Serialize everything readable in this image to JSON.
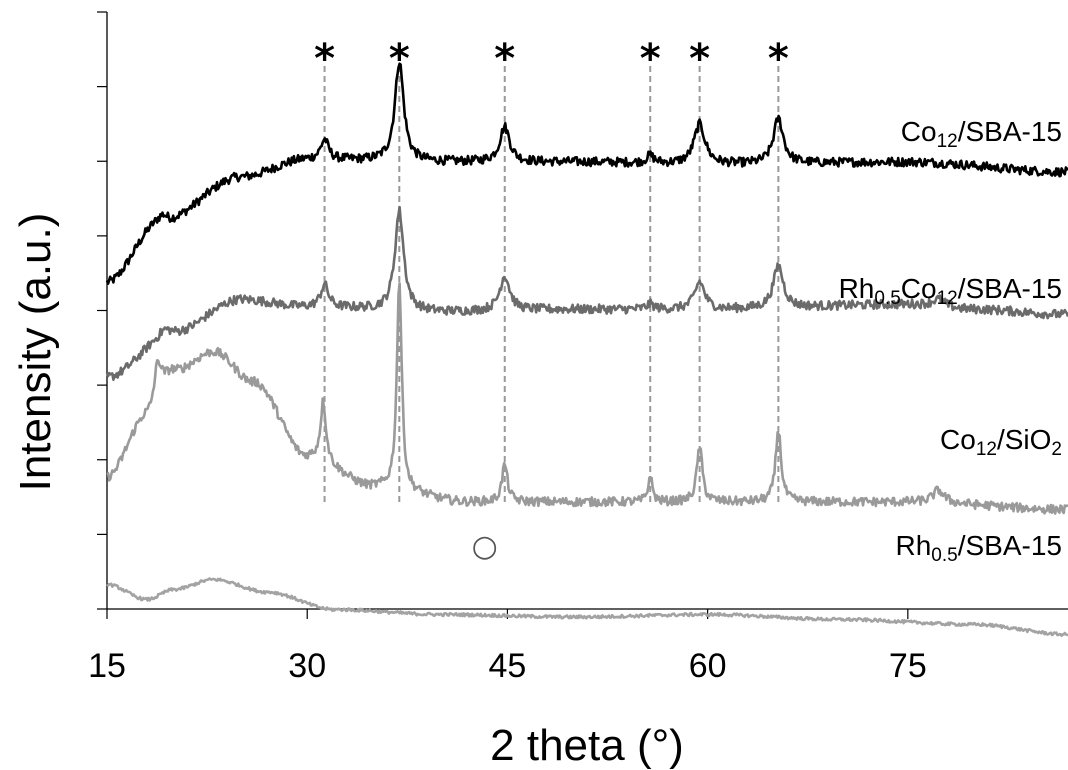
{
  "chart_data": {
    "type": "line",
    "xlabel": "2 theta (°)",
    "ylabel": "Intensity (a.u.)",
    "xlim": [
      15,
      87
    ],
    "x_ticks": [
      15,
      30,
      45,
      60,
      75
    ],
    "y_tick_count": 9,
    "y_ticks_labeled": false,
    "grid": false,
    "legend": "none (series labels placed at right of each trace)",
    "reference_peaks": {
      "marker": "*",
      "style": "dashed vertical lines",
      "color": "#999999",
      "x": [
        31.3,
        36.9,
        44.8,
        55.7,
        59.4,
        65.3
      ]
    },
    "other_marker": {
      "symbol": "○",
      "x": 43.3
    },
    "series": [
      {
        "label_parts": [
          {
            "t": "Co"
          },
          {
            "t": "12",
            "sub": true
          },
          {
            "t": "/SBA-15"
          }
        ],
        "color": "#000000",
        "baseline": [
          [
            15,
            2.1
          ],
          [
            19,
            3.3
          ],
          [
            25,
            4.2
          ],
          [
            30,
            4.55
          ],
          [
            40,
            4.5
          ],
          [
            50,
            4.5
          ],
          [
            60,
            4.45
          ],
          [
            75,
            4.5
          ],
          [
            87,
            4.3
          ]
        ],
        "peaks": [
          [
            19.2,
            0.15,
            0.4
          ],
          [
            31.3,
            0.4,
            0.35
          ],
          [
            36.9,
            2.0,
            0.4
          ],
          [
            44.8,
            0.7,
            0.45
          ],
          [
            55.7,
            0.15,
            0.35
          ],
          [
            59.4,
            0.8,
            0.5
          ],
          [
            65.3,
            0.9,
            0.45
          ]
        ]
      },
      {
        "label_parts": [
          {
            "t": "Rh"
          },
          {
            "t": "0.5",
            "sub": true
          },
          {
            "t": "Co"
          },
          {
            "t": "12",
            "sub": true
          },
          {
            "t": "/SBA-15"
          }
        ],
        "color": "#6b6b6b",
        "baseline": [
          [
            15,
            0.2
          ],
          [
            20,
            1.1
          ],
          [
            25,
            1.75
          ],
          [
            30,
            1.6
          ],
          [
            40,
            1.5
          ],
          [
            50,
            1.55
          ],
          [
            60,
            1.55
          ],
          [
            75,
            1.65
          ],
          [
            80,
            1.55
          ],
          [
            87,
            1.45
          ]
        ],
        "peaks": [
          [
            19.3,
            0.1,
            0.4
          ],
          [
            31.3,
            0.45,
            0.35
          ],
          [
            36.9,
            2.0,
            0.4
          ],
          [
            44.8,
            0.7,
            0.45
          ],
          [
            55.7,
            0.1,
            0.35
          ],
          [
            59.4,
            0.55,
            0.45
          ],
          [
            65.3,
            0.85,
            0.45
          ],
          [
            77.3,
            0.15,
            0.6
          ]
        ]
      },
      {
        "label_parts": [
          {
            "t": "Co"
          },
          {
            "t": "12",
            "sub": true
          },
          {
            "t": "/SiO"
          },
          {
            "t": "2",
            "sub": true
          }
        ],
        "color": "#9a9a9a",
        "baseline": [
          [
            15,
            -1.8
          ],
          [
            18,
            -0.6
          ],
          [
            20,
            0.3
          ],
          [
            23,
            0.7
          ],
          [
            26,
            0.1
          ],
          [
            30,
            -1.4
          ],
          [
            35,
            -2.0
          ],
          [
            42,
            -2.3
          ],
          [
            50,
            -2.3
          ],
          [
            60,
            -2.3
          ],
          [
            75,
            -2.3
          ],
          [
            87,
            -2.45
          ]
        ],
        "peaks": [
          [
            18.8,
            0.8,
            0.35
          ],
          [
            31.2,
            1.2,
            0.25
          ],
          [
            36.9,
            4.2,
            0.22
          ],
          [
            44.8,
            0.75,
            0.25
          ],
          [
            55.7,
            0.5,
            0.2
          ],
          [
            59.4,
            1.1,
            0.25
          ],
          [
            65.3,
            1.45,
            0.25
          ],
          [
            77.3,
            0.25,
            0.5
          ]
        ]
      },
      {
        "label_parts": [
          {
            "t": "Rh"
          },
          {
            "t": "0.5",
            "sub": true
          },
          {
            "t": "/SBA-15"
          }
        ],
        "color": "#a3a3a3",
        "baseline": [
          [
            15,
            -3.95
          ],
          [
            18,
            -4.25
          ],
          [
            20,
            -4.05
          ],
          [
            23,
            -3.85
          ],
          [
            27,
            -4.1
          ],
          [
            32,
            -4.45
          ],
          [
            40,
            -4.55
          ],
          [
            50,
            -4.6
          ],
          [
            60,
            -4.55
          ],
          [
            70,
            -4.65
          ],
          [
            80,
            -4.75
          ],
          [
            87,
            -4.95
          ]
        ],
        "peaks": []
      }
    ]
  }
}
